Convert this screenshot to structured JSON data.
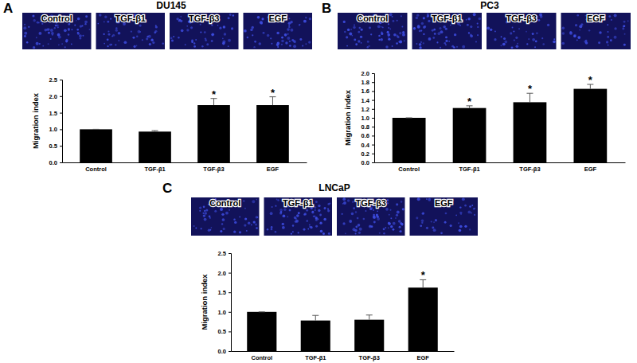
{
  "chart_data": [
    {
      "type": "bar",
      "panel_label": "A",
      "title": "DU145",
      "categories": [
        "Control",
        "TGF-β1",
        "TGF-β3",
        "EGF"
      ],
      "values": [
        1.0,
        0.93,
        1.73,
        1.73
      ],
      "errors": [
        0,
        0.03,
        0.2,
        0.25
      ],
      "color": "#000000",
      "ylabel": "Migration index",
      "ylim": [
        0,
        2.5
      ],
      "yticks": [
        {
          "value": 0,
          "label": "0.0"
        },
        0.5,
        {
          "value": 1,
          "label": "1.0"
        },
        1.5,
        {
          "value": 2,
          "label": "2.0"
        },
        2.5
      ],
      "annotations": [
        {
          "text": "*",
          "category": "TGF-β3"
        },
        {
          "text": "*",
          "category": "EGF"
        }
      ]
    },
    {
      "type": "bar",
      "panel_label": "B",
      "title": "PC3",
      "categories": [
        "Control",
        "TGF-β1",
        "TGF-β3",
        "EGF"
      ],
      "values": [
        1.0,
        1.22,
        1.35,
        1.65
      ],
      "errors": [
        0,
        0.05,
        0.2,
        0.1
      ],
      "color": "#000000",
      "ylabel": "Migration index",
      "ylim": [
        0,
        2.0
      ],
      "yticks": [
        {
          "value": 0,
          "label": "0.0"
        },
        0.2,
        0.4,
        0.6,
        0.8,
        {
          "value": 1,
          "label": "1.0"
        },
        1.2,
        1.4,
        1.6,
        1.8,
        {
          "value": 2,
          "label": "2.0"
        }
      ],
      "annotations": [
        {
          "text": "*",
          "category": "TGF-β1"
        },
        {
          "text": "*",
          "category": "TGF-β3"
        },
        {
          "text": "*",
          "category": "EGF"
        }
      ]
    },
    {
      "type": "bar",
      "panel_label": "C",
      "title": "LNCaP",
      "categories": [
        "Control",
        "TGF-β1",
        "TGF-β3",
        "EGF"
      ],
      "values": [
        1.0,
        0.78,
        0.8,
        1.62
      ],
      "errors": [
        0,
        0.13,
        0.12,
        0.2
      ],
      "color": "#000000",
      "ylabel": "Migration index",
      "ylim": [
        0,
        2.5
      ],
      "yticks": [
        {
          "value": 0,
          "label": "0.0"
        },
        0.5,
        {
          "value": 1,
          "label": "1.0"
        },
        1.5,
        {
          "value": 2,
          "label": "2.0"
        },
        2.5
      ],
      "annotations": [
        {
          "text": "*",
          "category": "EGF"
        }
      ]
    }
  ]
}
